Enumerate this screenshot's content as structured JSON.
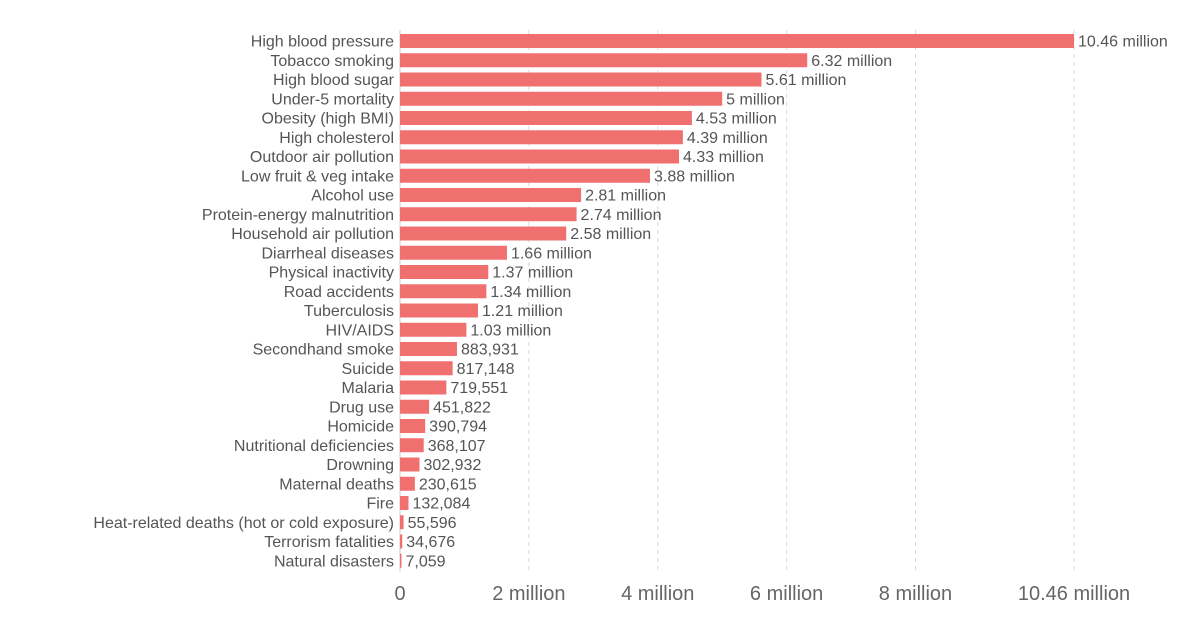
{
  "chart_data": {
    "type": "bar",
    "orientation": "horizontal",
    "categories": [
      "High blood pressure",
      "Tobacco smoking",
      "High blood sugar",
      "Under-5 mortality",
      "Obesity (high BMI)",
      "High cholesterol",
      "Outdoor air pollution",
      "Low fruit & veg intake",
      "Alcohol use",
      "Protein-energy malnutrition",
      "Household air pollution",
      "Diarrheal diseases",
      "Physical inactivity",
      "Road accidents",
      "Tuberculosis",
      "HIV/AIDS",
      "Secondhand smoke",
      "Suicide",
      "Malaria",
      "Drug use",
      "Homicide",
      "Nutritional deficiencies",
      "Drowning",
      "Maternal deaths",
      "Fire",
      "Heat-related deaths (hot or cold exposure)",
      "Terrorism fatalities",
      "Natural disasters"
    ],
    "values": [
      10460000,
      6320000,
      5610000,
      5000000,
      4530000,
      4390000,
      4330000,
      3880000,
      2810000,
      2740000,
      2580000,
      1660000,
      1370000,
      1340000,
      1210000,
      1030000,
      883931,
      817148,
      719551,
      451822,
      390794,
      368107,
      302932,
      230615,
      132084,
      55596,
      34676,
      7059
    ],
    "value_labels": [
      "10.46 million",
      "6.32 million",
      "5.61 million",
      "5 million",
      "4.53 million",
      "4.39 million",
      "4.33 million",
      "3.88 million",
      "2.81 million",
      "2.74 million",
      "2.58 million",
      "1.66 million",
      "1.37 million",
      "1.34 million",
      "1.21 million",
      "1.03 million",
      "883,931",
      "817,148",
      "719,551",
      "451,822",
      "390,794",
      "368,107",
      "302,932",
      "230,615",
      "132,084",
      "55,596",
      "34,676",
      "7,059"
    ],
    "x_ticks": [
      {
        "value": 0,
        "label": "0"
      },
      {
        "value": 2000000,
        "label": "2 million"
      },
      {
        "value": 4000000,
        "label": "4 million"
      },
      {
        "value": 6000000,
        "label": "6 million"
      },
      {
        "value": 8000000,
        "label": "8 million"
      },
      {
        "value": 10460000,
        "label": "10.46 million"
      }
    ],
    "xlim": [
      0,
      10460000
    ],
    "title": "",
    "xlabel": "",
    "ylabel": "",
    "grid": "vertical dashed",
    "bar_color": "#f07070",
    "text_color": "#555555"
  }
}
